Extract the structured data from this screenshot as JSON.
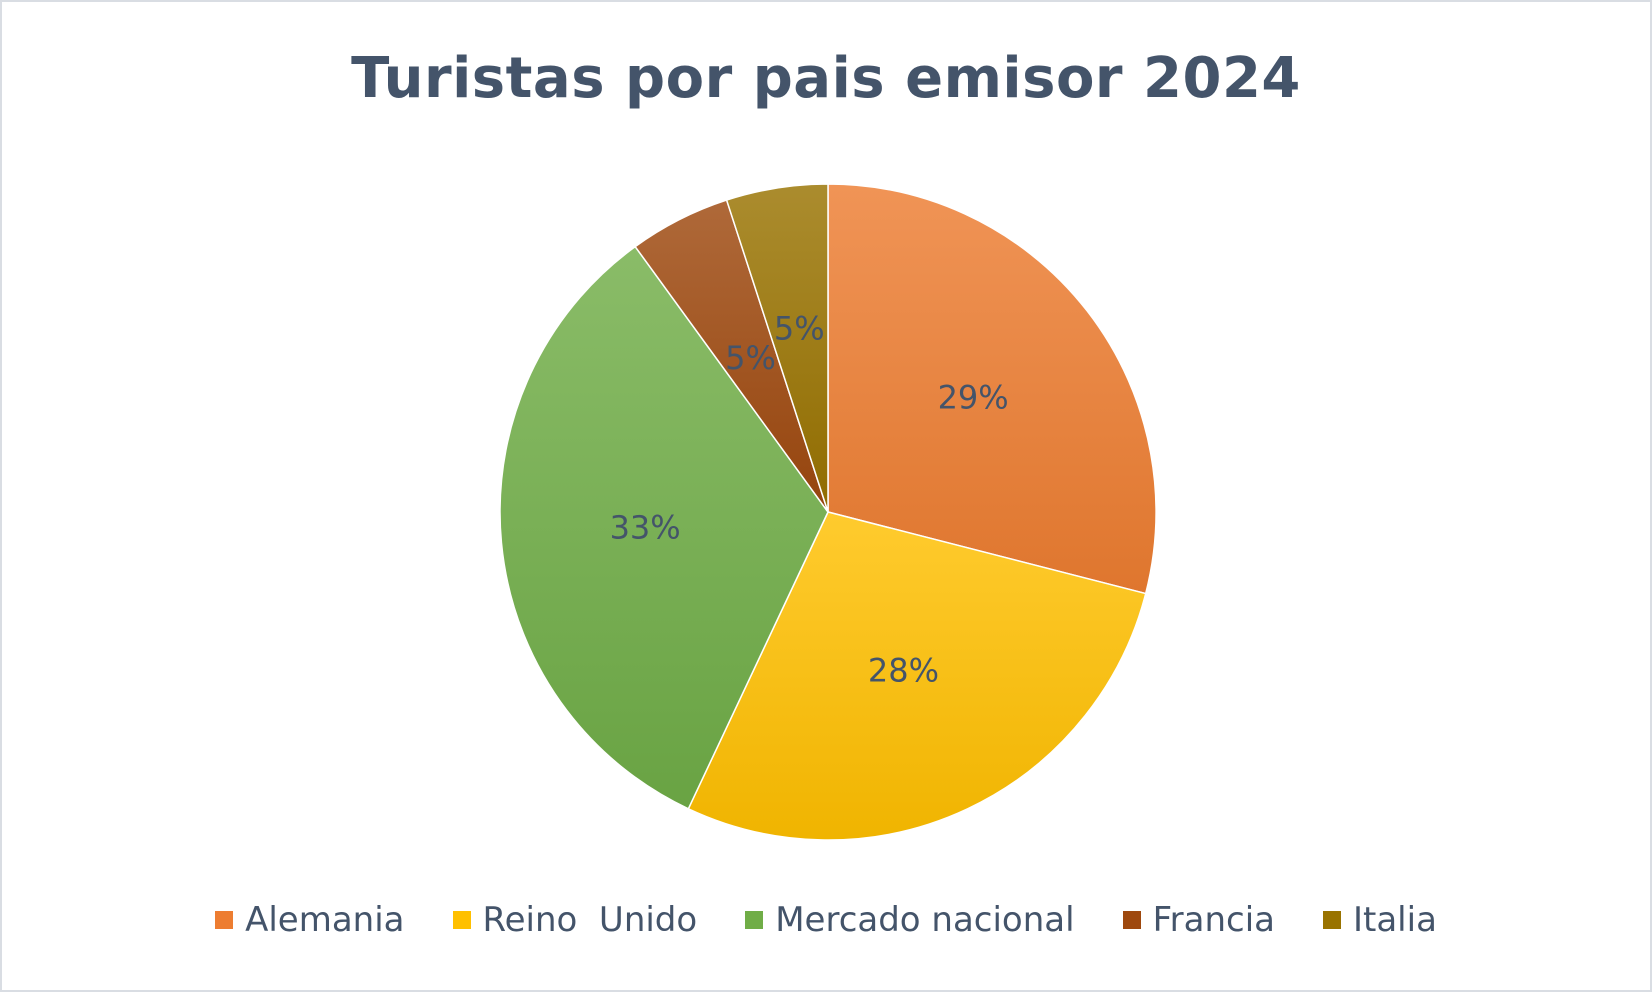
{
  "chart_data": {
    "type": "pie",
    "title": "Turistas por pais emisor 2024",
    "categories": [
      "Alemania",
      "Reino  Unido",
      "Mercado nacional",
      "Francia",
      "Italia"
    ],
    "values": [
      29,
      28,
      33,
      5,
      5
    ],
    "data_labels": [
      "29%",
      "28%",
      "33%",
      "5%",
      "5%"
    ],
    "colors": [
      "#ed7d31",
      "#ffc000",
      "#70ad47",
      "#9e480e",
      "#997300"
    ],
    "legend_position": "bottom",
    "start_angle": "12 o'clock, clockwise"
  }
}
